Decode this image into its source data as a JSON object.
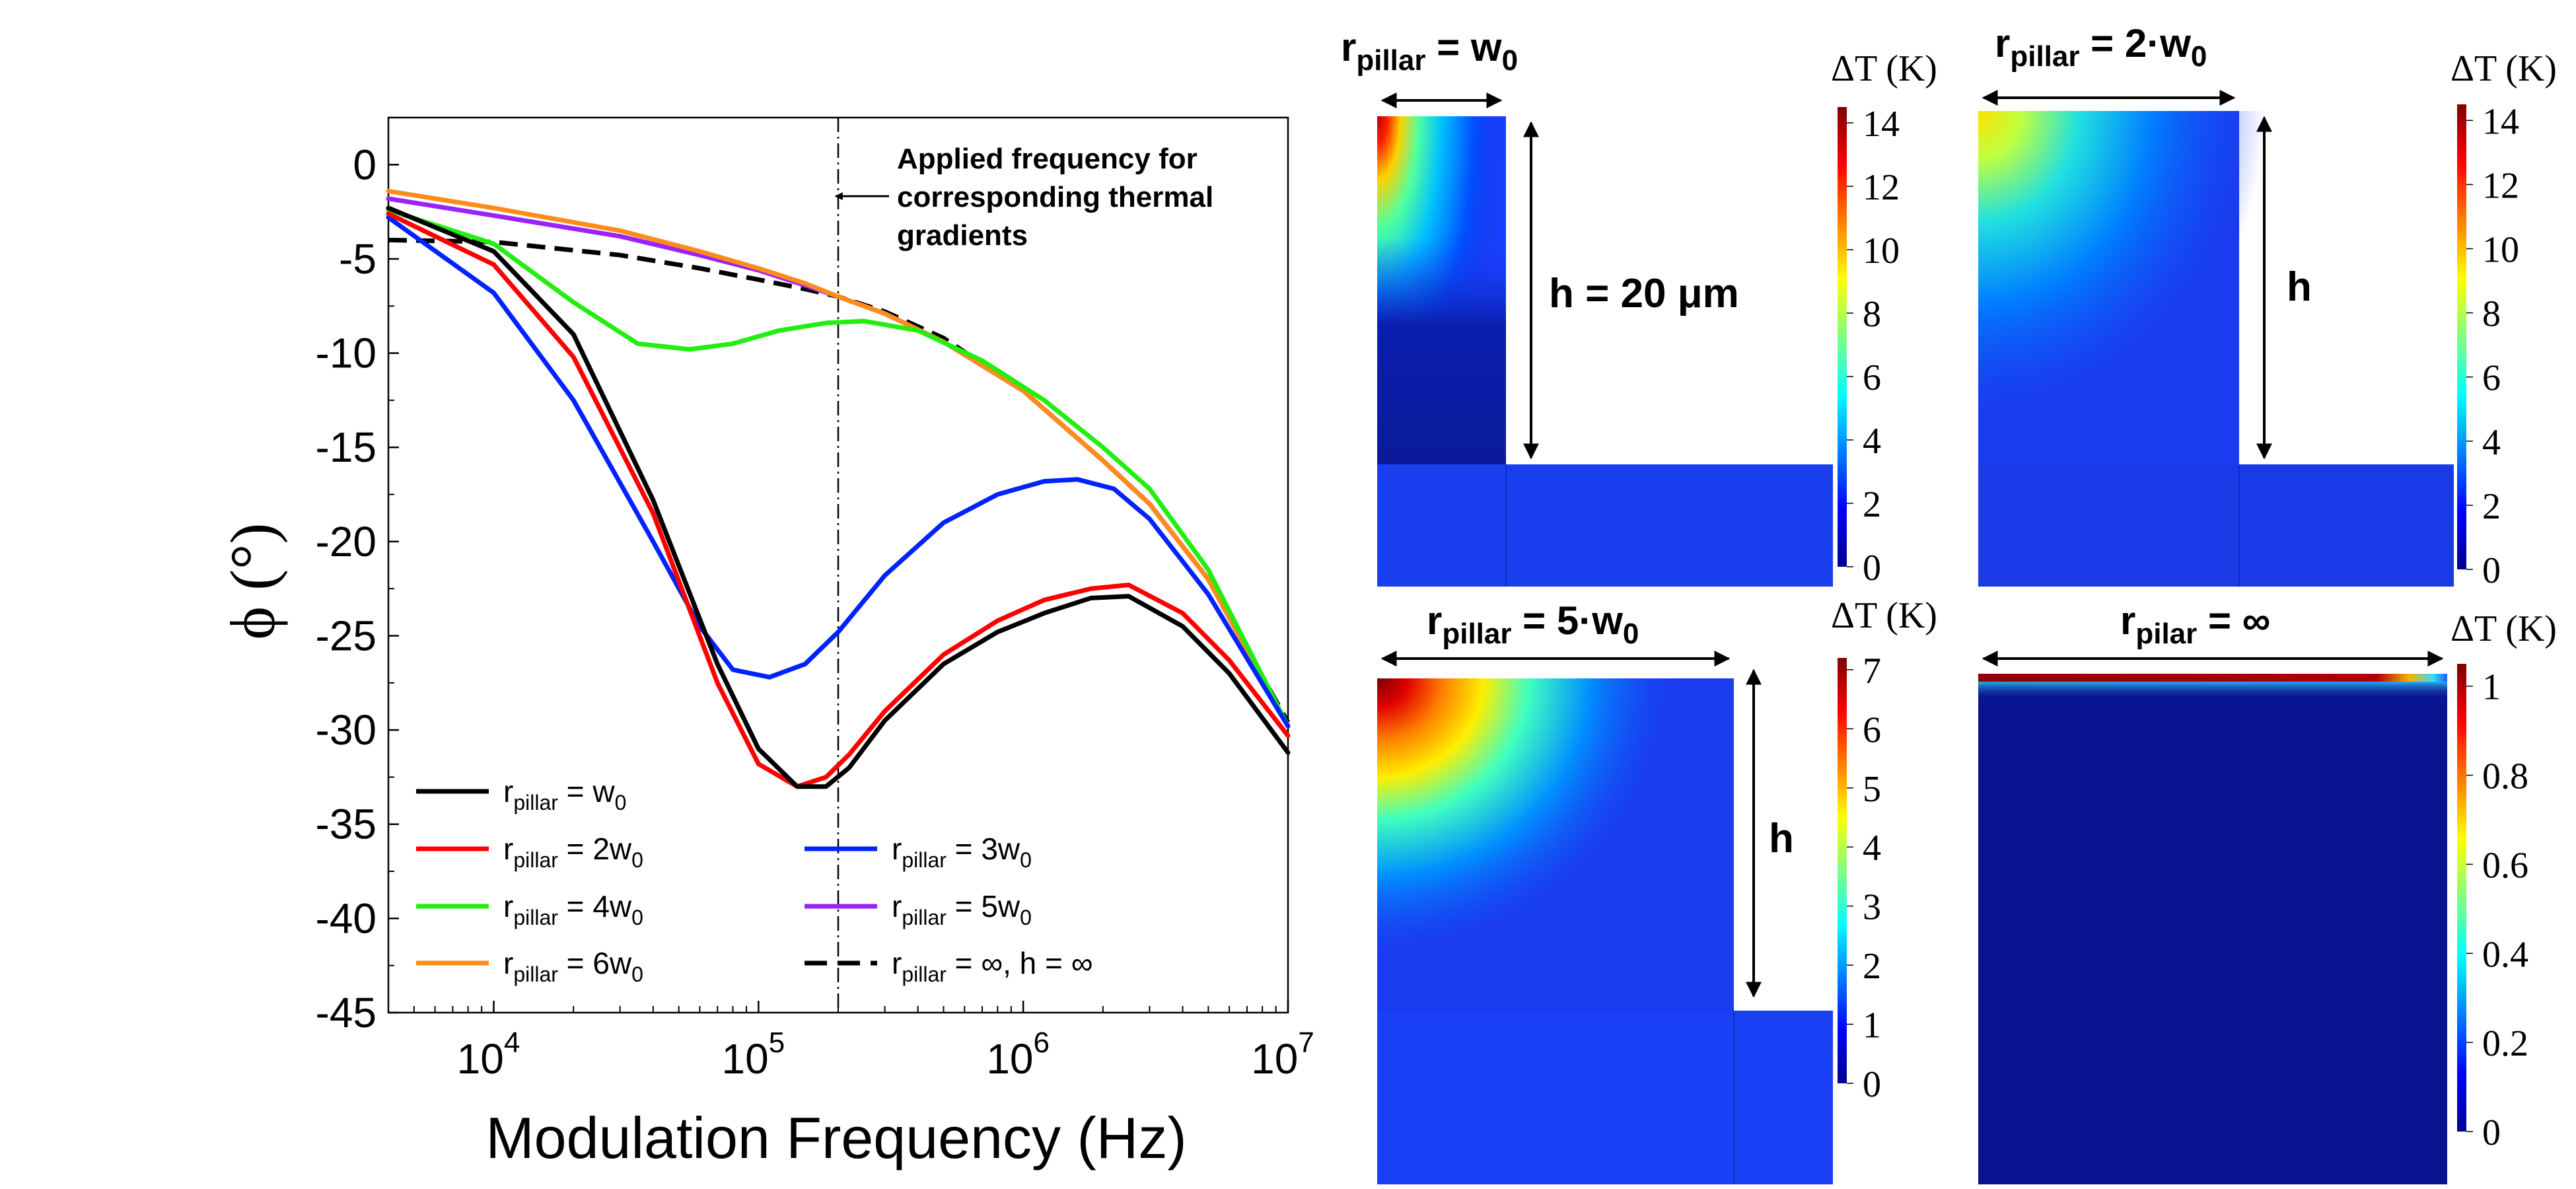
{
  "chart_data": [
    {
      "type": "line",
      "xscale": "log",
      "xlabel": "Modulation Frequency (Hz)",
      "ylabel": "ϕ (°)",
      "xlim": [
        4000,
        10000000
      ],
      "ylim": [
        -45,
        2.5
      ],
      "x_ticks": [
        {
          "base": "10",
          "exp": "4",
          "value": 10000
        },
        {
          "base": "10",
          "exp": "5",
          "value": 100000
        },
        {
          "base": "10",
          "exp": "6",
          "value": 1000000
        },
        {
          "base": "10",
          "exp": "7",
          "value": 10000000
        }
      ],
      "y_ticks": [
        {
          "label": "0",
          "value": 0
        },
        {
          "label": "-5",
          "value": -5
        },
        {
          "label": "-10",
          "value": -10
        },
        {
          "label": "-15",
          "value": -15
        },
        {
          "label": "-20",
          "value": -20
        },
        {
          "label": "-25",
          "value": -25
        },
        {
          "label": "-30",
          "value": -30
        },
        {
          "label": "-35",
          "value": -35
        },
        {
          "label": "-40",
          "value": -40
        },
        {
          "label": "-45",
          "value": -45
        }
      ],
      "annotation": {
        "lines": [
          "Applied frequency for",
          "corresponding thermal",
          "gradients"
        ],
        "x": 200000
      },
      "series": [
        {
          "sym": "r",
          "sub": "pillar",
          "eq": " = w",
          "sub2": "0",
          "after": "",
          "color": "#000000",
          "dash": "",
          "x": [
            4000,
            10000,
            20000,
            40000,
            70000,
            100000,
            140000,
            180000,
            220000,
            300000,
            500000,
            800000,
            1200000,
            1800000,
            2500000,
            4000000,
            6000000,
            10000000
          ],
          "y": [
            -2.3,
            -4.6,
            -9.0,
            -17.8,
            -26.5,
            -31.0,
            -33.0,
            -33.0,
            -32.0,
            -29.5,
            -26.5,
            -24.8,
            -23.8,
            -23.0,
            -22.9,
            -24.5,
            -27.0,
            -31.2
          ]
        },
        {
          "sym": "r",
          "sub": "pillar",
          "eq": " = 2w",
          "sub2": "0",
          "after": "",
          "color": "#ff0000",
          "dash": "",
          "x": [
            4000,
            10000,
            20000,
            40000,
            70000,
            100000,
            140000,
            180000,
            220000,
            300000,
            500000,
            800000,
            1200000,
            1800000,
            2500000,
            4000000,
            6000000,
            10000000
          ],
          "y": [
            -2.6,
            -5.3,
            -10.2,
            -18.5,
            -27.5,
            -31.8,
            -33.0,
            -32.5,
            -31.3,
            -29.0,
            -26.0,
            -24.2,
            -23.1,
            -22.5,
            -22.3,
            -23.8,
            -26.3,
            -30.3
          ]
        },
        {
          "sym": "r",
          "sub": "pillar",
          "eq": " = 3w",
          "sub2": "0",
          "after": "",
          "color": "#0022ff",
          "dash": "",
          "x": [
            4000,
            10000,
            20000,
            40000,
            60000,
            80000,
            110000,
            150000,
            200000,
            300000,
            500000,
            800000,
            1200000,
            1600000,
            2200000,
            3000000,
            5000000,
            10000000
          ],
          "y": [
            -2.8,
            -6.8,
            -12.5,
            -20.0,
            -24.5,
            -26.8,
            -27.2,
            -26.5,
            -24.8,
            -21.8,
            -19.0,
            -17.5,
            -16.8,
            -16.7,
            -17.2,
            -18.8,
            -22.8,
            -29.8
          ]
        },
        {
          "sym": "r",
          "sub": "pillar",
          "eq": " = 4w",
          "sub2": "0",
          "after": "",
          "color": "#22ee11",
          "dash": "",
          "x": [
            4000,
            10000,
            20000,
            35000,
            55000,
            80000,
            120000,
            180000,
            250000,
            400000,
            700000,
            1200000,
            2000000,
            3000000,
            5000000,
            10000000
          ],
          "y": [
            -2.4,
            -4.2,
            -7.3,
            -9.5,
            -9.8,
            -9.5,
            -8.8,
            -8.4,
            -8.3,
            -8.8,
            -10.4,
            -12.5,
            -15.0,
            -17.2,
            -21.5,
            -29.8
          ]
        },
        {
          "sym": "r",
          "sub": "pillar",
          "eq": " = 5w",
          "sub2": "0",
          "after": "",
          "color": "#9922ff",
          "dash": "",
          "x": [
            4000,
            10000,
            30000,
            60000,
            100000,
            150000,
            200000,
            300000,
            500000,
            1000000,
            2000000,
            3000000,
            5000000,
            10000000
          ],
          "y": [
            -1.8,
            -2.7,
            -3.8,
            -4.8,
            -5.6,
            -6.4,
            -7.0,
            -7.9,
            -9.4,
            -12.0,
            -15.7,
            -18.0,
            -22.0,
            -29.8
          ]
        },
        {
          "sym": "r",
          "sub": "pillar",
          "eq": " = 6w",
          "sub2": "0",
          "after": "",
          "color": "#ff8c1a",
          "dash": "",
          "x": [
            4000,
            10000,
            30000,
            60000,
            100000,
            150000,
            200000,
            300000,
            500000,
            1000000,
            2000000,
            3000000,
            5000000,
            10000000
          ],
          "y": [
            -1.4,
            -2.3,
            -3.5,
            -4.6,
            -5.5,
            -6.3,
            -7.0,
            -7.9,
            -9.4,
            -12.0,
            -15.7,
            -18.0,
            -22.0,
            -29.8
          ]
        },
        {
          "sym": "r",
          "sub": "pillar",
          "eq": " = ∞, h = ∞",
          "sub2": "",
          "after": "",
          "color": "#000000",
          "dash": "28,14",
          "x": [
            4000,
            10000,
            30000,
            60000,
            100000,
            150000,
            200000,
            300000,
            500000,
            1000000,
            2000000,
            3000000,
            5000000,
            10000000
          ],
          "y": [
            -4.0,
            -4.1,
            -4.8,
            -5.5,
            -6.1,
            -6.6,
            -7.0,
            -7.8,
            -9.2,
            -12.0,
            -15.7,
            -18.0,
            -22.0,
            -29.6
          ]
        }
      ]
    },
    {
      "type": "heatmap",
      "title": {
        "sym": "r",
        "sub": "pillar",
        "eq": " = w",
        "sub2": "0"
      },
      "dimension": "h = 20 μm",
      "colorbar": {
        "label": "ΔT (K)",
        "min": 0,
        "max": 14.5,
        "ticks": [
          "0",
          "2",
          "4",
          "6",
          "8",
          "10",
          "12",
          "14"
        ]
      }
    },
    {
      "type": "heatmap",
      "title": {
        "sym": "r",
        "sub": "pillar",
        "eq": " = 2·w",
        "sub2": "0"
      },
      "dimension": "h",
      "colorbar": {
        "label": "ΔT (K)",
        "min": 0,
        "max": 14.5,
        "ticks": [
          "0",
          "2",
          "4",
          "6",
          "8",
          "10",
          "12",
          "14"
        ]
      }
    },
    {
      "type": "heatmap",
      "title": {
        "sym": "r",
        "sub": "pillar",
        "eq": " = 5·w",
        "sub2": "0"
      },
      "dimension": "h",
      "colorbar": {
        "label": "ΔT (K)",
        "min": 0,
        "max": 7.2,
        "ticks": [
          "0",
          "1",
          "2",
          "3",
          "4",
          "5",
          "6",
          "7"
        ]
      }
    },
    {
      "type": "heatmap",
      "title": {
        "sym": "r",
        "sub": "pilar",
        "eq": " = ∞",
        "sub2": ""
      },
      "colorbar": {
        "label": "ΔT (K)",
        "min": 0,
        "max": 1.05,
        "ticks": [
          "0",
          "0.2",
          "0.4",
          "0.6",
          "0.8",
          "1"
        ]
      }
    }
  ]
}
